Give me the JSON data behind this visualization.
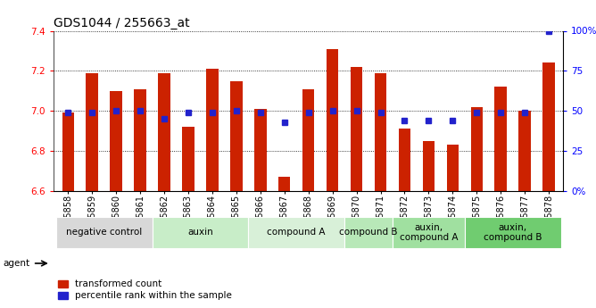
{
  "title": "GDS1044 / 255663_at",
  "samples": [
    "GSM25858",
    "GSM25859",
    "GSM25860",
    "GSM25861",
    "GSM25862",
    "GSM25863",
    "GSM25864",
    "GSM25865",
    "GSM25866",
    "GSM25867",
    "GSM25868",
    "GSM25869",
    "GSM25870",
    "GSM25871",
    "GSM25872",
    "GSM25873",
    "GSM25874",
    "GSM25875",
    "GSM25876",
    "GSM25877",
    "GSM25878"
  ],
  "transformed_count": [
    6.99,
    7.19,
    7.1,
    7.11,
    7.19,
    6.92,
    7.21,
    7.15,
    7.01,
    6.67,
    7.11,
    7.31,
    7.22,
    7.19,
    6.91,
    6.85,
    6.83,
    7.02,
    7.12,
    7.0,
    7.24
  ],
  "percentile_rank": [
    49,
    49,
    50,
    50,
    45,
    49,
    49,
    50,
    49,
    43,
    49,
    50,
    50,
    49,
    44,
    44,
    44,
    49,
    49,
    49,
    100
  ],
  "groups": [
    {
      "label": "negative control",
      "start": 0,
      "end": 4,
      "color": "#d8d8d8"
    },
    {
      "label": "auxin",
      "start": 4,
      "end": 8,
      "color": "#c8edc8"
    },
    {
      "label": "compound A",
      "start": 8,
      "end": 12,
      "color": "#d8f0d8"
    },
    {
      "label": "compound B",
      "start": 12,
      "end": 14,
      "color": "#b8e8b8"
    },
    {
      "label": "auxin,\ncompound A",
      "start": 14,
      "end": 17,
      "color": "#a0e0a0"
    },
    {
      "label": "auxin,\ncompound B",
      "start": 17,
      "end": 21,
      "color": "#70cc70"
    }
  ],
  "ylim_left": [
    6.6,
    7.4
  ],
  "ylim_right": [
    0,
    100
  ],
  "yticks_left": [
    6.6,
    6.8,
    7.0,
    7.2,
    7.4
  ],
  "yticks_right": [
    0,
    25,
    50,
    75,
    100
  ],
  "ytick_labels_right": [
    "0%",
    "25",
    "50",
    "75",
    "100%"
  ],
  "bar_color": "#cc2200",
  "dot_color": "#2222cc",
  "bar_width": 0.5,
  "baseline": 6.6,
  "title_fontsize": 10,
  "tick_fontsize": 7,
  "group_fontsize": 7.5,
  "legend_fontsize": 7.5
}
